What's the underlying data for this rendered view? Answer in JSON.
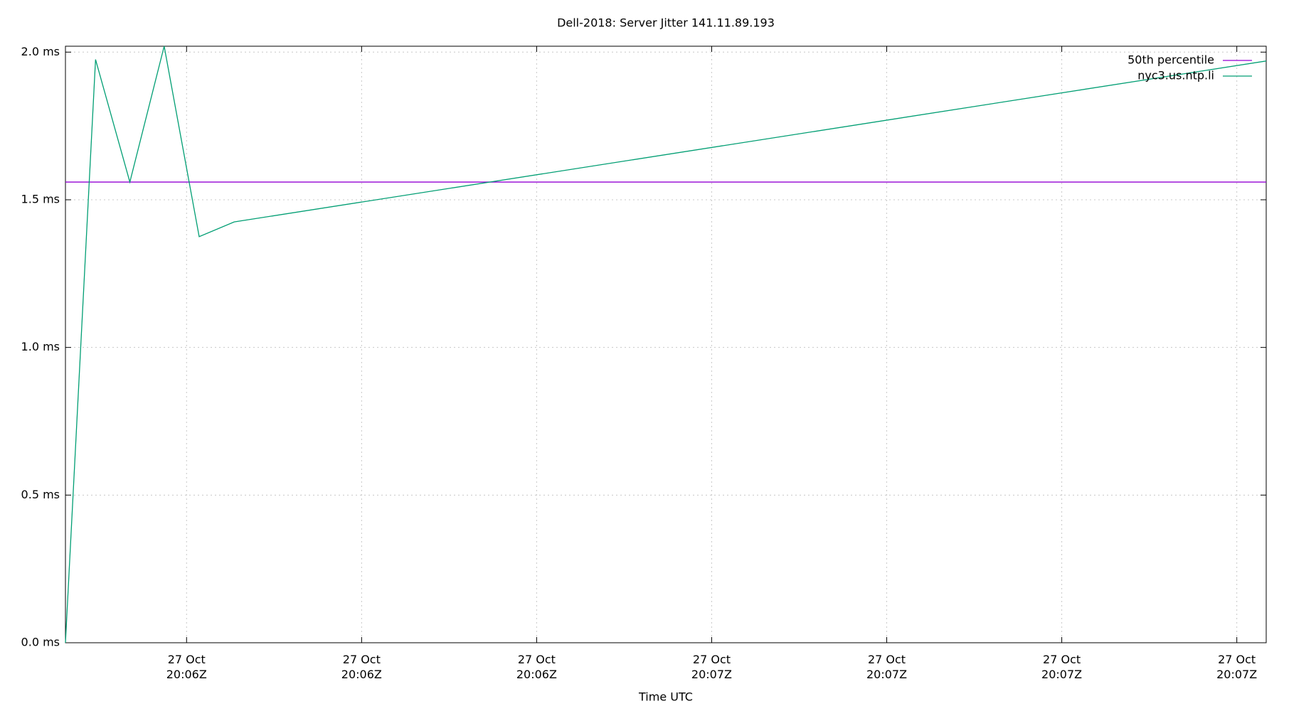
{
  "chart_data": {
    "type": "line",
    "title": "Dell-2018: Server Jitter 141.11.89.193",
    "x_label": "Time UTC",
    "xlim": [
      6.077,
      7.792
    ],
    "xticks": [
      {
        "value": 6.25,
        "label": "27 Oct\n20:06Z"
      },
      {
        "value": 6.5,
        "label": "27 Oct\n20:06Z"
      },
      {
        "value": 6.75,
        "label": "27 Oct\n20:06Z"
      },
      {
        "value": 7.0,
        "label": "27 Oct\n20:07Z"
      },
      {
        "value": 7.25,
        "label": "27 Oct\n20:07Z"
      },
      {
        "value": 7.5,
        "label": "27 Oct\n20:07Z"
      },
      {
        "value": 7.75,
        "label": "27 Oct\n20:07Z"
      }
    ],
    "ylim": [
      0,
      2.02
    ],
    "yticks": [
      {
        "value": 0,
        "label": "0.0 ms"
      },
      {
        "value": 0.5,
        "label": "0.5 ms"
      },
      {
        "value": 1.0,
        "label": "1.0 ms"
      },
      {
        "value": 1.5,
        "label": "1.5 ms"
      },
      {
        "value": 2.0,
        "label": "2.0 ms"
      }
    ],
    "grid": true,
    "legend": "top-right",
    "series": [
      {
        "name": "50th percentile",
        "color": "#9400d3",
        "x": [
          6.077,
          7.792
        ],
        "values": [
          1.56,
          1.56
        ]
      },
      {
        "name": "nyc3.us.ntp.li",
        "color": "#009e73",
        "x": [
          6.077,
          6.12,
          6.169,
          6.218,
          6.268,
          6.318,
          7.792
        ],
        "values": [
          0.0,
          1.975,
          1.56,
          2.02,
          1.375,
          1.425,
          1.97
        ]
      }
    ]
  }
}
